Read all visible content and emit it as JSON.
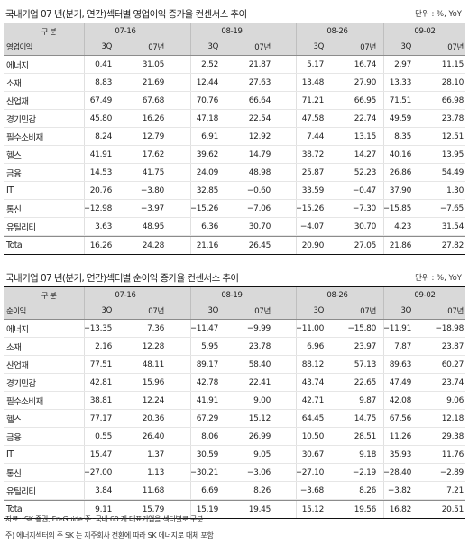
{
  "tables": [
    {
      "title": "국내기업 07 년(분기, 연간)섹터별 영업이익 증가율 컨센서스 추이",
      "unit": "단위 : %, YoY",
      "header_label": "구 분",
      "metric_label": "영업이익",
      "dates": [
        "07-16",
        "08-19",
        "08-26",
        "09-02"
      ],
      "sub_headers": [
        "3Q",
        "07년"
      ],
      "rows": [
        {
          "label": "에너지",
          "values": [
            "0.41",
            "31.05",
            "2.52",
            "21.87",
            "5.17",
            "16.74",
            "2.97",
            "11.15"
          ]
        },
        {
          "label": "소재",
          "values": [
            "8.83",
            "21.69",
            "12.44",
            "27.63",
            "13.48",
            "27.90",
            "13.33",
            "28.10"
          ]
        },
        {
          "label": "산업재",
          "values": [
            "67.49",
            "67.68",
            "70.76",
            "66.64",
            "71.21",
            "66.95",
            "71.51",
            "66.98"
          ]
        },
        {
          "label": "경기민감",
          "values": [
            "45.80",
            "16.26",
            "47.18",
            "22.54",
            "47.58",
            "22.74",
            "49.59",
            "23.78"
          ]
        },
        {
          "label": "필수소비재",
          "values": [
            "8.24",
            "12.79",
            "6.91",
            "12.92",
            "7.44",
            "13.15",
            "8.35",
            "12.51"
          ]
        },
        {
          "label": "헬스",
          "values": [
            "41.91",
            "17.62",
            "39.62",
            "14.79",
            "38.72",
            "14.27",
            "40.16",
            "13.95"
          ]
        },
        {
          "label": "금융",
          "values": [
            "14.53",
            "41.75",
            "24.09",
            "48.98",
            "25.87",
            "52.23",
            "26.86",
            "54.49"
          ]
        },
        {
          "label": "IT",
          "values": [
            "20.76",
            "−3.80",
            "32.85",
            "−0.60",
            "33.59",
            "−0.47",
            "37.90",
            "1.30"
          ]
        },
        {
          "label": "통신",
          "values": [
            "−12.98",
            "−3.97",
            "−15.26",
            "−7.06",
            "−15.26",
            "−7.30",
            "−15.85",
            "−7.65"
          ]
        },
        {
          "label": "유틸리티",
          "values": [
            "3.63",
            "48.95",
            "6.36",
            "30.70",
            "−4.07",
            "30.70",
            "4.23",
            "31.54"
          ]
        },
        {
          "label": "Total",
          "values": [
            "16.26",
            "24.28",
            "21.16",
            "26.45",
            "20.90",
            "27.05",
            "21.86",
            "27.82"
          ]
        }
      ]
    },
    {
      "title": "국내기업 07 년(분기, 연간)섹터별 순이익 증가율 컨센서스 추이",
      "unit": "단위 : %, YoY",
      "header_label": "구 분",
      "metric_label": "순이익",
      "dates": [
        "07-16",
        "08-19",
        "08-26",
        "09-02"
      ],
      "sub_headers": [
        "3Q",
        "07년"
      ],
      "rows": [
        {
          "label": "에너지",
          "values": [
            "−13.35",
            "7.36",
            "−11.47",
            "−9.99",
            "−11.00",
            "−15.80",
            "−11.91",
            "−18.98"
          ]
        },
        {
          "label": "소재",
          "values": [
            "2.16",
            "12.28",
            "5.95",
            "23.78",
            "6.96",
            "23.97",
            "7.87",
            "23.87"
          ]
        },
        {
          "label": "산업재",
          "values": [
            "77.51",
            "48.11",
            "89.17",
            "58.40",
            "88.12",
            "57.13",
            "89.63",
            "60.27"
          ]
        },
        {
          "label": "경기민감",
          "values": [
            "42.81",
            "15.96",
            "42.78",
            "22.41",
            "43.74",
            "22.65",
            "47.49",
            "23.74"
          ]
        },
        {
          "label": "필수소비재",
          "values": [
            "38.81",
            "12.24",
            "41.91",
            "9.00",
            "42.71",
            "9.87",
            "42.08",
            "9.06"
          ]
        },
        {
          "label": "헬스",
          "values": [
            "77.17",
            "20.36",
            "67.29",
            "15.12",
            "64.45",
            "14.75",
            "67.56",
            "12.18"
          ]
        },
        {
          "label": "금융",
          "values": [
            "0.55",
            "26.40",
            "8.06",
            "26.99",
            "10.50",
            "28.51",
            "11.26",
            "29.38"
          ]
        },
        {
          "label": "IT",
          "values": [
            "15.47",
            "1.37",
            "30.59",
            "9.05",
            "30.67",
            "9.18",
            "35.93",
            "11.76"
          ]
        },
        {
          "label": "통신",
          "values": [
            "−27.00",
            "1.13",
            "−30.21",
            "−3.06",
            "−27.10",
            "−2.19",
            "−28.40",
            "−2.89"
          ]
        },
        {
          "label": "유틸리티",
          "values": [
            "3.84",
            "11.68",
            "6.69",
            "8.26",
            "−3.68",
            "8.26",
            "−3.82",
            "7.21"
          ]
        },
        {
          "label": "Total",
          "values": [
            "9.11",
            "15.79",
            "15.19",
            "19.45",
            "15.12",
            "19.56",
            "16.82",
            "20.51"
          ]
        }
      ]
    }
  ],
  "notes": [
    "자료 : SK 증권, Fn-Guide   주: 국내 60 개 대표기업을 섹터별로 구분",
    "주) 에너지섹터의 주 SK 는 지주회사 전환에 따라 SK 에너지로 대체 포함"
  ]
}
